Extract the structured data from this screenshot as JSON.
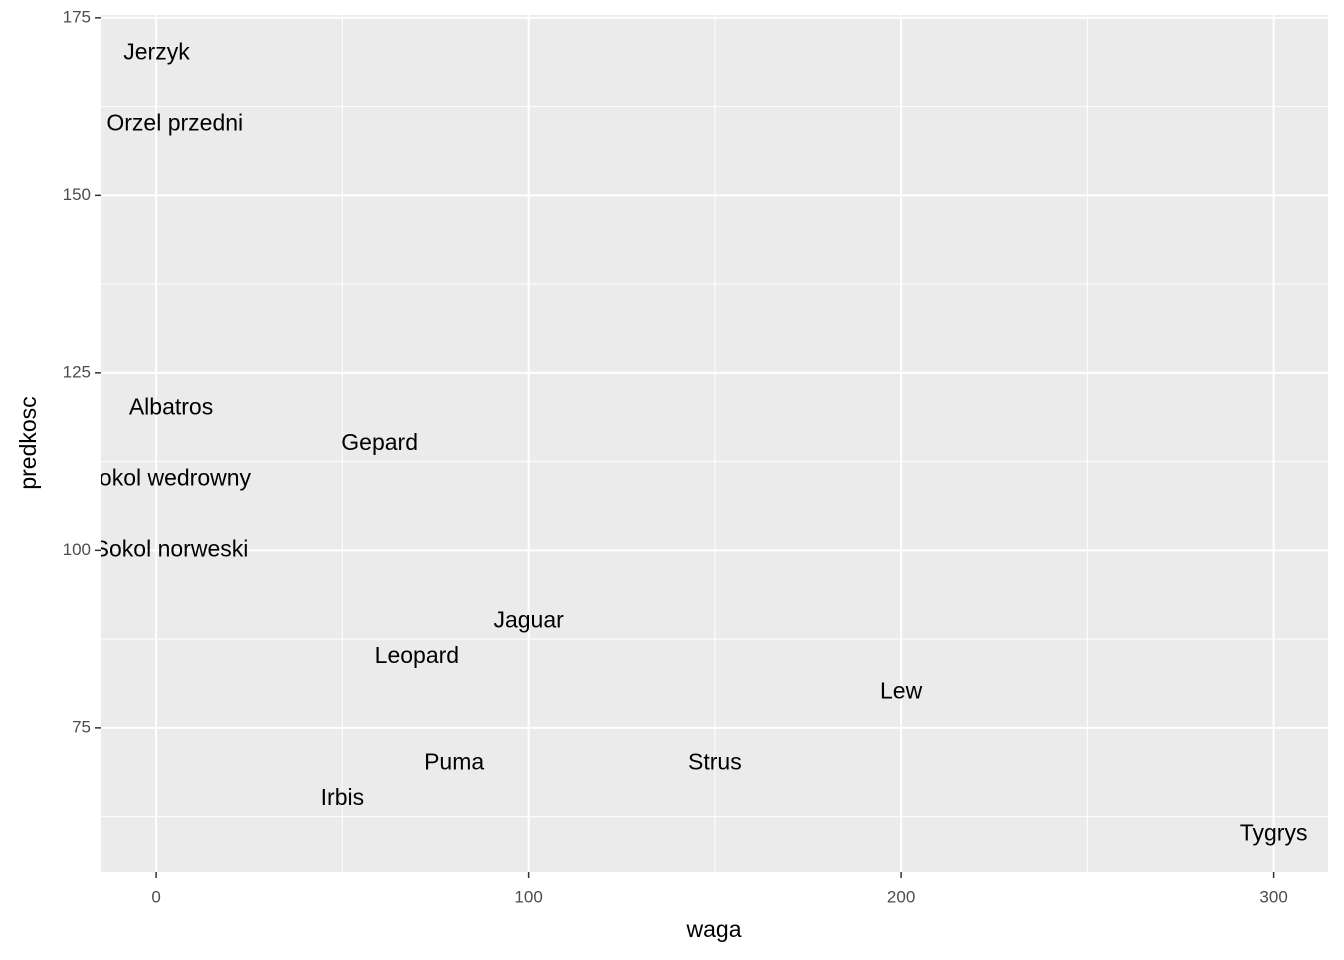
{
  "chart_data": {
    "type": "scatter",
    "x_label": "waga",
    "y_label": "predkosc",
    "labels": [
      "Jerzyk",
      "Orzel przedni",
      "Albatros",
      "Gepard",
      "Sokol wedrowny",
      "Sokol norweski",
      "Jaguar",
      "Leopard",
      "Lew",
      "Puma",
      "Strus",
      "Irbis",
      "Tygrys"
    ],
    "x": [
      0.1,
      5,
      4,
      60,
      3,
      4,
      100,
      70,
      200,
      80,
      150,
      50,
      300
    ],
    "values": [
      170,
      160,
      120,
      115,
      110,
      100,
      90,
      85,
      80,
      70,
      70,
      65,
      60
    ],
    "color": "#000000",
    "xlim": [
      -14.8,
      314.6
    ],
    "xticks": [
      0,
      100,
      200,
      300
    ],
    "ylim": [
      54.7,
      175.4
    ],
    "yticks": [
      75,
      100,
      125,
      150,
      175
    ],
    "grid": true
  }
}
